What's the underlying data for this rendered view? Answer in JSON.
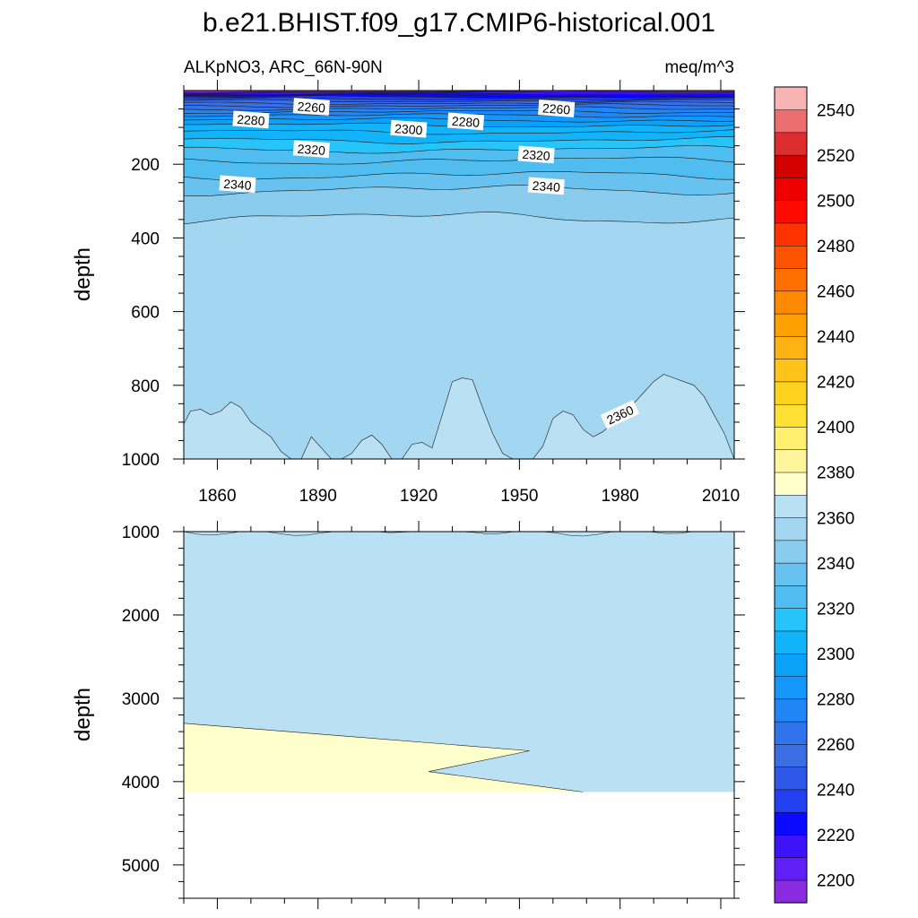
{
  "title": "b.e21.BHIST.f09_g17.CMIP6-historical.001",
  "subtitle_left": "ALKpNO3, ARC_66N-90N",
  "subtitle_right": "meq/m^3",
  "chart_data": [
    {
      "type": "contour",
      "panel": "upper",
      "ylabel": "depth",
      "xlim": [
        1850,
        2014
      ],
      "ylim": [
        1000,
        0
      ],
      "y_reversed": true,
      "x_ticks": [
        1860,
        1890,
        1920,
        1950,
        1980,
        2010
      ],
      "y_ticks": [
        200,
        400,
        600,
        800,
        1000
      ],
      "contour_labels": [
        {
          "value": "2260",
          "x": 1888,
          "y": 45
        },
        {
          "value": "2260",
          "x": 1961,
          "y": 50
        },
        {
          "value": "2280",
          "x": 1870,
          "y": 80
        },
        {
          "value": "2280",
          "x": 1934,
          "y": 85
        },
        {
          "value": "2300",
          "x": 1917,
          "y": 105
        },
        {
          "value": "2320",
          "x": 1888,
          "y": 160
        },
        {
          "value": "2320",
          "x": 1955,
          "y": 175
        },
        {
          "value": "2340",
          "x": 1866,
          "y": 255
        },
        {
          "value": "2340",
          "x": 1958,
          "y": 260
        },
        {
          "value": "2360",
          "x": 1980,
          "y": 880
        }
      ],
      "isoline_2360_depth": {
        "x": [
          1850,
          1852,
          1855,
          1858,
          1861,
          1864,
          1867,
          1870,
          1873,
          1876,
          1879,
          1882,
          1885,
          1888,
          1891,
          1894,
          1897,
          1900,
          1903,
          1906,
          1909,
          1912,
          1915,
          1918,
          1921,
          1924,
          1927,
          1930,
          1933,
          1936,
          1939,
          1942,
          1945,
          1948,
          1951,
          1954,
          1957,
          1960,
          1963,
          1966,
          1969,
          1972,
          1975,
          1978,
          1981,
          1984,
          1987,
          1990,
          1993,
          1996,
          1999,
          2002,
          2005,
          2008,
          2011,
          2014
        ],
        "y": [
          905,
          870,
          865,
          880,
          870,
          845,
          860,
          900,
          920,
          940,
          980,
          1000,
          1000,
          940,
          970,
          1000,
          1000,
          985,
          950,
          935,
          960,
          1000,
          1000,
          960,
          955,
          970,
          880,
          790,
          780,
          785,
          860,
          930,
          985,
          1000,
          1000,
          1000,
          965,
          890,
          870,
          880,
          920,
          940,
          925,
          900,
          870,
          850,
          820,
          790,
          770,
          780,
          790,
          800,
          830,
          880,
          930,
          1000
        ]
      }
    },
    {
      "type": "contour",
      "panel": "lower",
      "ylabel": "depth",
      "xlim": [
        1850,
        2014
      ],
      "ylim": [
        5400,
        1000
      ],
      "y_reversed": true,
      "y_ticks": [
        1000,
        2000,
        3000,
        4000,
        5000
      ],
      "bottom_depth": 4125,
      "isoline_2380_boundary": {
        "x": [
          1850,
          1953,
          1923,
          1969
        ],
        "y": [
          3300,
          3630,
          3880,
          4125
        ]
      }
    },
    {
      "type": "colorbar",
      "levels": [
        2200,
        2210,
        2220,
        2230,
        2240,
        2250,
        2260,
        2270,
        2280,
        2290,
        2300,
        2310,
        2320,
        2330,
        2340,
        2350,
        2360,
        2370,
        2380,
        2390,
        2400,
        2410,
        2420,
        2430,
        2440,
        2450,
        2460,
        2470,
        2480,
        2490,
        2500,
        2510,
        2520,
        2530,
        2540,
        2550
      ],
      "tick_labels": [
        "2200",
        "2220",
        "2240",
        "2260",
        "2280",
        "2300",
        "2320",
        "2340",
        "2360",
        "2380",
        "2400",
        "2420",
        "2440",
        "2460",
        "2480",
        "2500",
        "2520",
        "2540"
      ],
      "colors": [
        "#8a2be2",
        "#5f1ff5",
        "#3d14fa",
        "#0a0aff",
        "#2340f0",
        "#2f58e8",
        "#3b6de3",
        "#2f74ec",
        "#2086f5",
        "#1496fa",
        "#0aa2f8",
        "#13b3f9",
        "#27c4f9",
        "#4fbdf0",
        "#67c2ef",
        "#89ccee",
        "#a3d6f0",
        "#b9e1f3",
        "#ffffcc",
        "#fff59b",
        "#fff072",
        "#ffe135",
        "#ffd21d",
        "#ffc31a",
        "#ffb214",
        "#ff9f00",
        "#ff8a00",
        "#ff6e00",
        "#ff5300",
        "#ff3300",
        "#ff0a00",
        "#ee0000",
        "#d30000",
        "#dc2e2e",
        "#ec6e6e",
        "#f7b4b4"
      ]
    }
  ]
}
